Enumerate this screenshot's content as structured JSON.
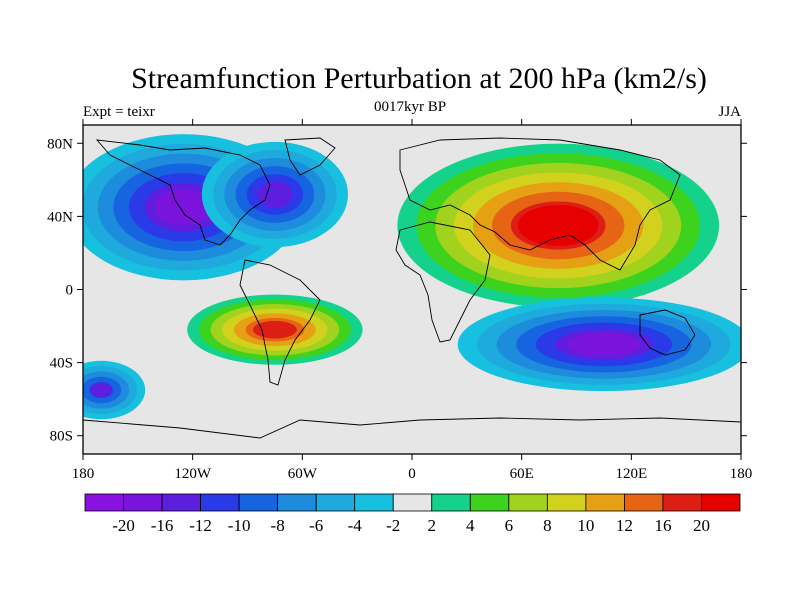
{
  "chart_data": {
    "type": "heatmap",
    "title": "Streamfunction Perturbation at 200 hPa (km2/s)",
    "left_string": "Expt = teixr",
    "center_string": "0017kyr BP",
    "right_string": "JJA",
    "x_ticks": [
      "180",
      "120W",
      "60W",
      "0",
      "60E",
      "120E",
      "180"
    ],
    "y_ticks": [
      "80N",
      "40N",
      "0",
      "40S",
      "80S"
    ],
    "lon_range": [
      -180,
      180
    ],
    "lat_range": [
      -90,
      90
    ],
    "colorbar": {
      "levels": [
        "-20",
        "-16",
        "-12",
        "-10",
        "-8",
        "-6",
        "-4",
        "-2",
        "2",
        "4",
        "6",
        "8",
        "10",
        "12",
        "16",
        "20"
      ],
      "colors": [
        "#8a12e0",
        "#7a14dc",
        "#5e1ee0",
        "#2a3ae8",
        "#1664e0",
        "#1e8cdc",
        "#1eaadc",
        "#18c0e0",
        "#e6e6e6",
        "#14d28c",
        "#3cd21e",
        "#a0d21e",
        "#d2d21e",
        "#e6a014",
        "#e66414",
        "#dc1e14",
        "#e60000"
      ]
    },
    "field_features": [
      {
        "type": "high",
        "lon": 80,
        "lat": 35,
        "value": 22,
        "extent_lon": 55,
        "extent_lat": 28
      },
      {
        "type": "high",
        "lon": -75,
        "lat": -22,
        "value": 17,
        "extent_lon": 30,
        "extent_lat": 12
      },
      {
        "type": "low",
        "lon": -125,
        "lat": 45,
        "value": -19,
        "extent_lon": 40,
        "extent_lat": 25
      },
      {
        "type": "low",
        "lon": -75,
        "lat": 52,
        "value": -14,
        "extent_lon": 25,
        "extent_lat": 18
      },
      {
        "type": "low",
        "lon": 105,
        "lat": -30,
        "value": -18,
        "extent_lon": 50,
        "extent_lat": 16
      },
      {
        "type": "low",
        "lon": -170,
        "lat": -55,
        "value": -12,
        "extent_lon": 15,
        "extent_lat": 10
      }
    ]
  }
}
